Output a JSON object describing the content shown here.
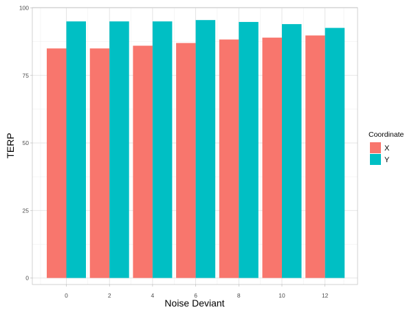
{
  "chart_data": {
    "type": "bar",
    "categories": [
      "0",
      "2",
      "4",
      "6",
      "8",
      "10",
      "12"
    ],
    "series": [
      {
        "name": "X",
        "color": "#F8766D",
        "values": [
          85,
          85,
          86,
          87,
          88.3,
          89,
          89.8
        ]
      },
      {
        "name": "Y",
        "color": "#00BFC4",
        "values": [
          95,
          95,
          95,
          95.5,
          94.8,
          94,
          92.6
        ]
      }
    ],
    "xlabel": "Noise Deviant",
    "ylabel": "TERP",
    "ylim": [
      0,
      100
    ],
    "yticks": [
      "0",
      "25",
      "50",
      "75",
      "100"
    ],
    "legend": {
      "title": "Coordinate",
      "placement": "right"
    },
    "grid": true
  }
}
